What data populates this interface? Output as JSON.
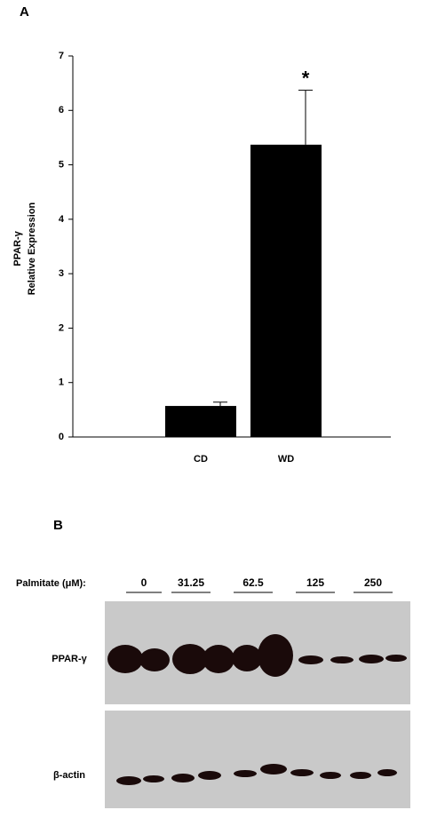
{
  "chart_data": {
    "type": "bar",
    "panel_label": "A",
    "ylabel": [
      "PPAR-γ",
      "Relative Expression"
    ],
    "categories": [
      "CD",
      "WD"
    ],
    "values": [
      0.57,
      5.37
    ],
    "errors": [
      0.07,
      1.0
    ],
    "color": "#000000",
    "annotations": [
      {
        "category": 1,
        "text": "*"
      }
    ],
    "ylim": [
      0,
      7
    ],
    "yticks": [
      0,
      1,
      2,
      3,
      4,
      5,
      6,
      7
    ],
    "grid": false
  },
  "blot": {
    "panel_label": "B",
    "treatment_label": "Palmitate (μM):",
    "lanes": [
      "0",
      "31.25",
      "62.5",
      "125",
      "250"
    ],
    "rows": [
      "PPAR-γ",
      "β-actin"
    ]
  }
}
